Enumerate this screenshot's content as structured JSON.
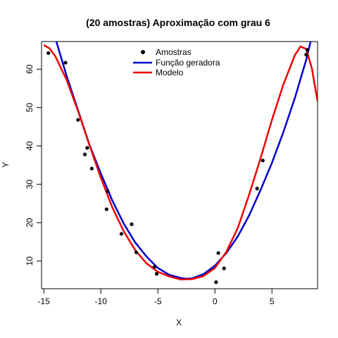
{
  "chart_data": {
    "type": "scatter",
    "title": "(20 amostras) Aproximação com grau  6",
    "xlabel": "X",
    "ylabel": "Y",
    "xlim": [
      -15.2,
      9.0
    ],
    "ylim": [
      2.8,
      67.2
    ],
    "x_ticks": [
      -15,
      -10,
      -5,
      0,
      5
    ],
    "y_ticks": [
      10,
      20,
      30,
      40,
      50,
      60
    ],
    "x_tick_labels": [
      "-15",
      "-10",
      "-5",
      "0",
      "5"
    ],
    "y_tick_labels": [
      "10",
      "20",
      "30",
      "40",
      "50",
      "60"
    ],
    "grid": false,
    "legend_position": "top-center",
    "series": [
      {
        "name": "Amostras",
        "kind": "points",
        "color": "#000000",
        "x": [
          -14.6,
          -13.1,
          -12.0,
          -11.4,
          -11.2,
          -10.8,
          -9.5,
          -9.4,
          -8.2,
          -7.3,
          -6.9,
          -5.3,
          -5.1,
          0.1,
          0.3,
          0.8,
          3.7,
          4.2,
          8.0,
          8.1
        ],
        "y": [
          64.2,
          61.7,
          46.8,
          37.8,
          39.5,
          34.1,
          23.5,
          28.2,
          17.1,
          19.6,
          12.3,
          8.5,
          6.7,
          4.5,
          12.1,
          8.1,
          28.9,
          36.2,
          63.8,
          65.0
        ]
      },
      {
        "name": "Função geradora",
        "kind": "line",
        "color": "#0000cc",
        "x": [
          -15.0,
          -14.0,
          -13.0,
          -12.0,
          -11.0,
          -10.0,
          -9.0,
          -8.0,
          -7.0,
          -6.0,
          -5.0,
          -4.0,
          -3.0,
          -2.5,
          -2.0,
          -1.0,
          0.0,
          1.0,
          2.0,
          3.0,
          4.0,
          5.0,
          6.0,
          7.0,
          7.5,
          8.0,
          8.3,
          8.7
        ],
        "y": [
          76.8,
          68.2,
          58.2,
          49.3,
          40.3,
          32.8,
          25.8,
          19.8,
          14.9,
          11.2,
          8.2,
          6.4,
          5.6,
          5.4,
          5.5,
          6.6,
          8.8,
          12.1,
          16.4,
          21.9,
          28.5,
          35.6,
          43.6,
          52.4,
          57.4,
          62.4,
          66.1,
          71.0
        ]
      },
      {
        "name": "Modelo",
        "kind": "line",
        "color": "#ee0000",
        "x": [
          -15.0,
          -14.5,
          -14.0,
          -13.0,
          -12.0,
          -11.0,
          -10.0,
          -9.0,
          -8.0,
          -7.0,
          -6.0,
          -5.0,
          -4.0,
          -3.0,
          -2.0,
          -1.0,
          0.0,
          1.0,
          2.0,
          3.0,
          4.0,
          5.0,
          6.0,
          7.0,
          7.5,
          8.0,
          8.5,
          9.0
        ],
        "y": [
          66.3,
          65.4,
          63.4,
          57.2,
          49.1,
          40.2,
          31.7,
          24.0,
          17.8,
          12.9,
          9.4,
          7.2,
          6.0,
          5.2,
          5.3,
          6.1,
          8.2,
          12.4,
          18.6,
          27.3,
          36.8,
          46.8,
          56.0,
          63.6,
          65.9,
          65.3,
          60.2,
          51.6
        ]
      }
    ]
  }
}
